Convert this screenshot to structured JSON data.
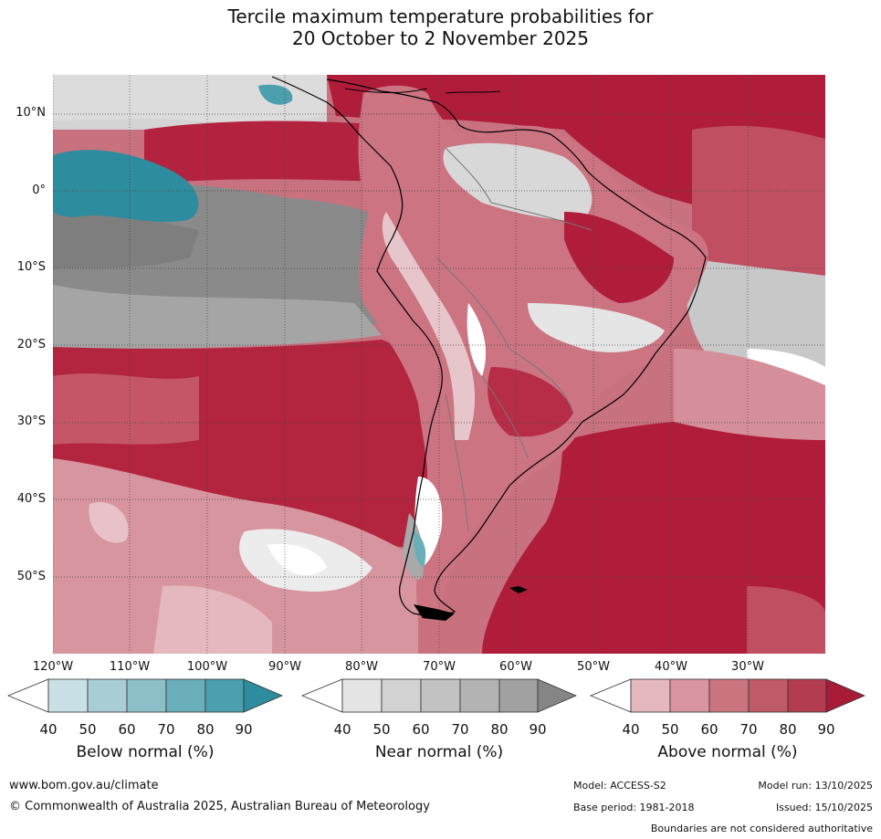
{
  "title": {
    "line1": "Tercile maximum temperature probabilities for",
    "line2": "20 October to 2 November 2025"
  },
  "axes": {
    "lat_labels": [
      "10°N",
      "0°",
      "10°S",
      "20°S",
      "30°S",
      "40°S",
      "50°S"
    ],
    "lon_labels": [
      "120°W",
      "110°W",
      "100°W",
      "90°W",
      "80°W",
      "70°W",
      "60°W",
      "50°W",
      "40°W",
      "30°W"
    ]
  },
  "colorbars": [
    {
      "name": "Below normal (%)",
      "ticks": [
        "40",
        "50",
        "60",
        "70",
        "80",
        "90"
      ],
      "colors": [
        "#ffffff",
        "#c9e1e6",
        "#a8cdd4",
        "#8cbfc8",
        "#6aaeba",
        "#4b9fae",
        "#2d8c9d"
      ]
    },
    {
      "name": "Near normal (%)",
      "ticks": [
        "40",
        "50",
        "60",
        "70",
        "80",
        "90"
      ],
      "colors": [
        "#ffffff",
        "#e4e4e4",
        "#d2d2d2",
        "#c2c2c2",
        "#b3b3b3",
        "#a1a1a1",
        "#858585"
      ]
    },
    {
      "name": "Above normal (%)",
      "ticks": [
        "40",
        "50",
        "60",
        "70",
        "80",
        "90"
      ],
      "colors": [
        "#ffffff",
        "#e4b8be",
        "#d8959f",
        "#ca7480",
        "#bf5a68",
        "#b33c50",
        "#a81c3a"
      ]
    }
  ],
  "footer": {
    "website": "www.bom.gov.au/climate",
    "copyright": "© Commonwealth of Australia 2025, Australian Bureau of Meteorology",
    "model": "Model: ACCESS-S2",
    "model_run": "Model run: 13/10/2025",
    "base_period": "Base period: 1981-2018",
    "issued": "Issued: 15/10/2025",
    "disclaimer": "Boundaries are not considered authoritative"
  }
}
